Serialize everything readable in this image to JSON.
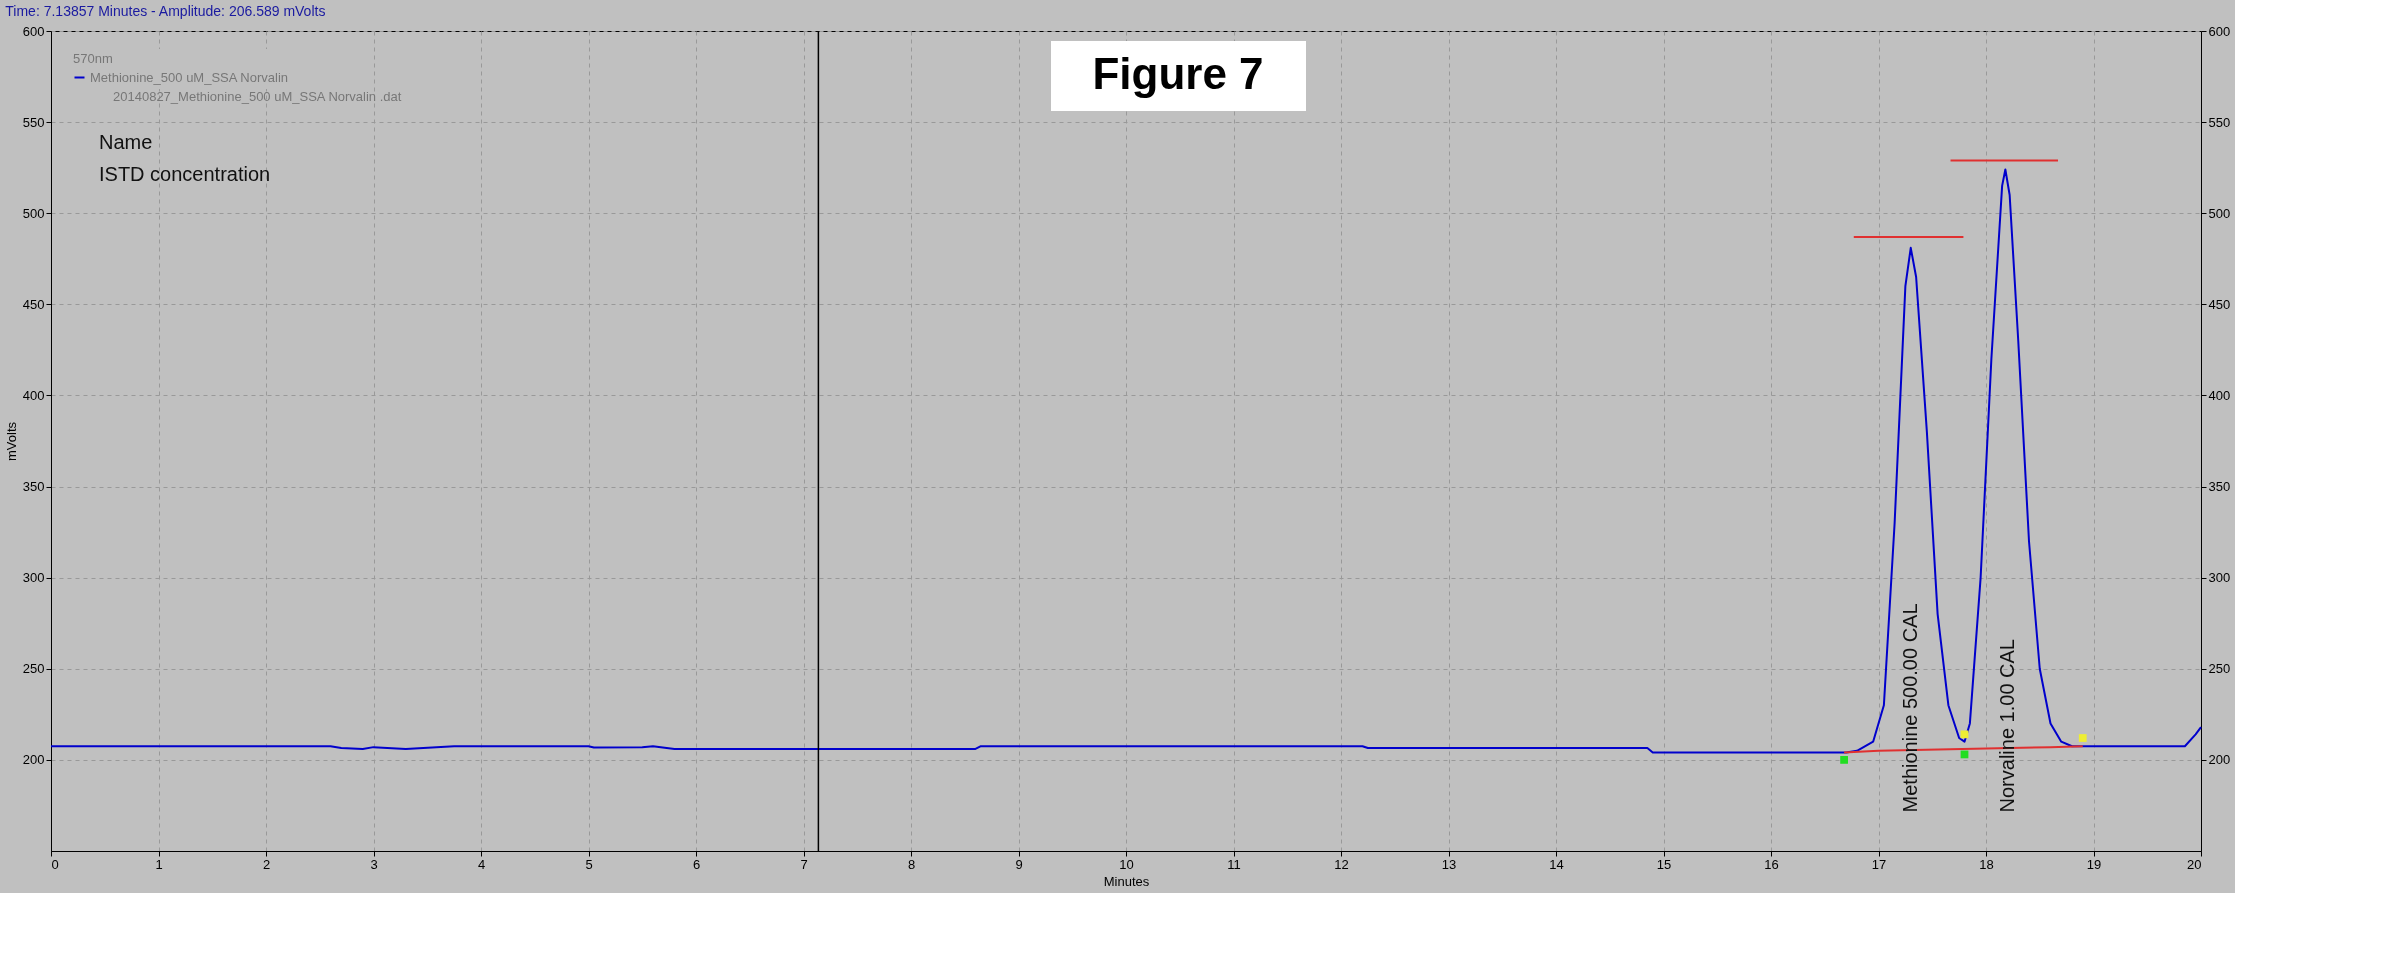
{
  "chart_data": {
    "type": "line",
    "title": "Time: 7.13857 Minutes - Amplitude: 206.589 mVolts",
    "xlabel": "Minutes",
    "ylabel": "mVolts",
    "legend_title": "570nm",
    "legend": "top left",
    "grid": true,
    "marker": "none",
    "line_style": "solid",
    "xlim": [
      0,
      20
    ],
    "xticks": [
      0,
      1,
      2,
      3,
      4,
      5,
      6,
      7,
      8,
      9,
      10,
      11,
      12,
      13,
      14,
      15,
      16,
      17,
      18,
      19,
      20
    ],
    "ylim": [
      150,
      600
    ],
    "yticks": [
      200,
      250,
      300,
      350,
      400,
      450,
      500,
      550,
      600
    ],
    "y2lim": [
      150,
      600
    ],
    "y2ticks": [
      200,
      250,
      300,
      350,
      400,
      450,
      500,
      550,
      600
    ],
    "series": [
      {
        "name": "Methionine_500 uM_SSA Norvalin",
        "color": "#0000cc",
        "x": [
          0,
          2.6,
          2.7,
          2.9,
          3.0,
          3.3,
          3.75,
          5.0,
          5.05,
          5.5,
          5.6,
          5.8,
          8.6,
          8.65,
          12.2,
          12.25,
          14.85,
          14.9,
          16.7,
          16.8,
          16.95,
          17.05,
          17.15,
          17.25,
          17.3,
          17.35,
          17.45,
          17.55,
          17.65,
          17.75,
          17.8,
          17.85,
          17.95,
          18.05,
          18.15,
          18.18,
          18.22,
          18.3,
          18.4,
          18.5,
          18.6,
          18.7,
          18.8,
          19.85,
          19.95,
          20
        ],
        "values": [
          207.5,
          207.5,
          206.5,
          206,
          207,
          206,
          207.5,
          207.5,
          206.8,
          207,
          207.5,
          206,
          206,
          207.5,
          207.5,
          206.5,
          206.5,
          204,
          204,
          205,
          210,
          230,
          330,
          460,
          481,
          465,
          380,
          280,
          230,
          212,
          210,
          220,
          300,
          420,
          515,
          524,
          510,
          430,
          320,
          250,
          220,
          210,
          207.5,
          207.5,
          214,
          218
        ]
      },
      {
        "color": "#e03030",
        "x": [
          16.68,
          17.0,
          18.6,
          18.9
        ],
        "values": [
          204,
          205,
          207,
          207.5
        ]
      },
      {
        "color": "#e03030",
        "x": [
          16.77,
          17.79
        ],
        "values": [
          487,
          487
        ]
      },
      {
        "color": "#e03030",
        "x": [
          17.67,
          18.67
        ],
        "values": [
          529,
          529
        ]
      },
      {
        "type": "scatter",
        "color": "#22dd22",
        "marker": "square",
        "x": [
          16.68,
          17.8
        ],
        "values": [
          200,
          203
        ]
      },
      {
        "type": "scatter",
        "color": "#eeee33",
        "marker": "square",
        "x": [
          17.8,
          18.9
        ],
        "values": [
          214,
          212
        ]
      }
    ],
    "ref_lines": [
      {
        "axis": "x",
        "value": 7.13857,
        "color": "#000000"
      }
    ],
    "annotations": [
      "20140827_Methionine_500 uM_SSA Norvalin .dat",
      "Name",
      "ISTD concentration",
      "Figure 7",
      "Methionine  500.00 CAL",
      "Norvaline  1.00 CAL"
    ]
  }
}
